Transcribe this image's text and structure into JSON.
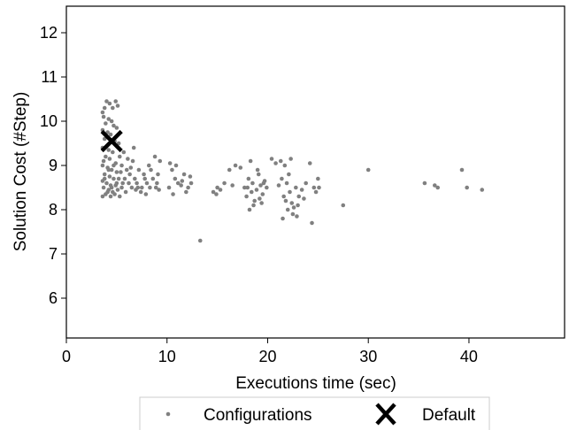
{
  "chart_data": {
    "type": "scatter",
    "title": "",
    "xlabel": "Executions time (sec)",
    "ylabel": "Solution Cost (#Step)",
    "xlim": [
      0,
      49.5
    ],
    "ylim": [
      5.1,
      12.6
    ],
    "xticks": [
      0,
      10,
      20,
      30,
      40
    ],
    "yticks": [
      6,
      7,
      8,
      9,
      10,
      11,
      12
    ],
    "grid": false,
    "legend_position": "bottom-center, below plot",
    "series": [
      {
        "name": "Configurations",
        "marker": "dot",
        "color": "#808080",
        "points": [
          [
            3.6,
            10.2
          ],
          [
            3.8,
            10.3
          ],
          [
            4.0,
            10.45
          ],
          [
            4.3,
            10.4
          ],
          [
            4.6,
            10.3
          ],
          [
            4.9,
            10.45
          ],
          [
            5.1,
            10.35
          ],
          [
            3.7,
            10.1
          ],
          [
            4.2,
            10.05
          ],
          [
            4.5,
            10.0
          ],
          [
            3.9,
            9.95
          ],
          [
            4.7,
            9.9
          ],
          [
            5.0,
            9.85
          ],
          [
            3.6,
            9.8
          ],
          [
            4.1,
            9.75
          ],
          [
            4.4,
            9.7
          ],
          [
            3.8,
            9.6
          ],
          [
            4.8,
            9.55
          ],
          [
            5.2,
            9.5
          ],
          [
            3.6,
            9.4
          ],
          [
            4.2,
            9.35
          ],
          [
            4.6,
            9.3
          ],
          [
            3.9,
            9.2
          ],
          [
            5.3,
            9.2
          ],
          [
            4.3,
            9.15
          ],
          [
            3.7,
            9.1
          ],
          [
            4.9,
            9.05
          ],
          [
            5.5,
            9.0
          ],
          [
            3.6,
            9.0
          ],
          [
            4.1,
            8.95
          ],
          [
            4.5,
            8.9
          ],
          [
            5.0,
            8.85
          ],
          [
            5.4,
            8.85
          ],
          [
            3.8,
            8.8
          ],
          [
            4.3,
            8.75
          ],
          [
            4.7,
            8.7
          ],
          [
            5.2,
            8.7
          ],
          [
            3.6,
            8.65
          ],
          [
            4.0,
            8.6
          ],
          [
            4.4,
            8.55
          ],
          [
            4.9,
            8.55
          ],
          [
            5.6,
            8.6
          ],
          [
            3.7,
            8.5
          ],
          [
            4.2,
            8.45
          ],
          [
            4.6,
            8.4
          ],
          [
            5.1,
            8.45
          ],
          [
            3.9,
            8.35
          ],
          [
            4.4,
            8.3
          ],
          [
            4.8,
            8.35
          ],
          [
            3.6,
            8.3
          ],
          [
            5.3,
            8.3
          ],
          [
            4.1,
            8.4
          ],
          [
            4.5,
            8.5
          ],
          [
            3.8,
            8.7
          ],
          [
            4.2,
            8.9
          ],
          [
            4.7,
            9.0
          ],
          [
            5.0,
            8.6
          ],
          [
            5.5,
            8.5
          ],
          [
            5.8,
            8.7
          ],
          [
            6.0,
            8.9
          ],
          [
            6.2,
            8.6
          ],
          [
            6.5,
            8.5
          ],
          [
            6.3,
            8.8
          ],
          [
            6.8,
            8.7
          ],
          [
            7.0,
            8.6
          ],
          [
            7.2,
            8.9
          ],
          [
            6.6,
            9.1
          ],
          [
            7.5,
            8.5
          ],
          [
            7.8,
            8.7
          ],
          [
            8.0,
            8.6
          ],
          [
            8.3,
            8.5
          ],
          [
            8.6,
            8.7
          ],
          [
            8.9,
            8.5
          ],
          [
            9.1,
            8.8
          ],
          [
            9.3,
            9.1
          ],
          [
            7.4,
            8.4
          ],
          [
            6.9,
            8.45
          ],
          [
            8.4,
            8.9
          ],
          [
            5.7,
            9.3
          ],
          [
            6.1,
            9.15
          ],
          [
            6.7,
            9.4
          ],
          [
            5.9,
            8.4
          ],
          [
            7.1,
            8.5
          ],
          [
            7.7,
            8.8
          ],
          [
            8.8,
            9.2
          ],
          [
            6.4,
            8.95
          ],
          [
            9.0,
            8.6
          ],
          [
            7.9,
            8.35
          ],
          [
            8.2,
            9.0
          ],
          [
            9.2,
            8.45
          ],
          [
            10.2,
            8.5
          ],
          [
            10.5,
            8.9
          ],
          [
            10.8,
            8.7
          ],
          [
            11.1,
            8.6
          ],
          [
            11.4,
            8.55
          ],
          [
            11.7,
            8.8
          ],
          [
            12.1,
            8.5
          ],
          [
            12.4,
            8.6
          ],
          [
            10.9,
            9.0
          ],
          [
            11.5,
            8.65
          ],
          [
            10.3,
            9.05
          ],
          [
            11.9,
            8.4
          ],
          [
            12.3,
            8.75
          ],
          [
            10.6,
            8.35
          ],
          [
            13.3,
            7.3
          ],
          [
            14.6,
            8.4
          ],
          [
            15.0,
            8.5
          ],
          [
            15.3,
            8.45
          ],
          [
            15.7,
            8.6
          ],
          [
            16.2,
            8.9
          ],
          [
            16.5,
            8.55
          ],
          [
            16.8,
            9.0
          ],
          [
            17.3,
            8.95
          ],
          [
            14.9,
            8.35
          ],
          [
            17.7,
            8.5
          ],
          [
            17.9,
            8.3
          ],
          [
            18.1,
            8.7
          ],
          [
            18.3,
            9.1
          ],
          [
            18.5,
            8.6
          ],
          [
            18.7,
            8.2
          ],
          [
            18.9,
            8.45
          ],
          [
            19.1,
            8.8
          ],
          [
            19.3,
            8.55
          ],
          [
            19.5,
            8.35
          ],
          [
            19.7,
            8.65
          ],
          [
            19.9,
            8.5
          ],
          [
            18.2,
            8.0
          ],
          [
            18.6,
            8.1
          ],
          [
            19.0,
            8.9
          ],
          [
            19.2,
            8.25
          ],
          [
            19.6,
            8.6
          ],
          [
            18.0,
            8.5
          ],
          [
            18.4,
            8.4
          ],
          [
            19.4,
            8.15
          ],
          [
            20.4,
            9.15
          ],
          [
            20.8,
            9.05
          ],
          [
            21.1,
            8.55
          ],
          [
            21.4,
            8.7
          ],
          [
            21.6,
            8.3
          ],
          [
            21.8,
            8.2
          ],
          [
            22.0,
            8.0
          ],
          [
            22.2,
            8.4
          ],
          [
            22.4,
            8.15
          ],
          [
            22.6,
            8.05
          ],
          [
            21.3,
            9.1
          ],
          [
            21.7,
            9.0
          ],
          [
            22.3,
            9.15
          ],
          [
            22.1,
            8.8
          ],
          [
            21.9,
            8.6
          ],
          [
            22.5,
            7.9
          ],
          [
            21.5,
            7.8
          ],
          [
            22.8,
            8.5
          ],
          [
            23.1,
            8.3
          ],
          [
            23.4,
            8.45
          ],
          [
            23.8,
            8.6
          ],
          [
            24.2,
            9.05
          ],
          [
            24.6,
            8.5
          ],
          [
            24.4,
            7.7
          ],
          [
            25.0,
            8.7
          ],
          [
            25.1,
            8.5
          ],
          [
            24.8,
            8.4
          ],
          [
            23.6,
            8.25
          ],
          [
            23.0,
            8.1
          ],
          [
            22.9,
            7.85
          ],
          [
            27.5,
            8.1
          ],
          [
            30.0,
            8.9
          ],
          [
            35.6,
            8.6
          ],
          [
            36.6,
            8.55
          ],
          [
            36.9,
            8.5
          ],
          [
            39.3,
            8.9
          ],
          [
            39.8,
            8.5
          ],
          [
            41.3,
            8.45
          ]
        ]
      },
      {
        "name": "Default",
        "marker": "x",
        "color": "#000000",
        "points": [
          [
            4.5,
            9.55
          ]
        ]
      }
    ]
  }
}
